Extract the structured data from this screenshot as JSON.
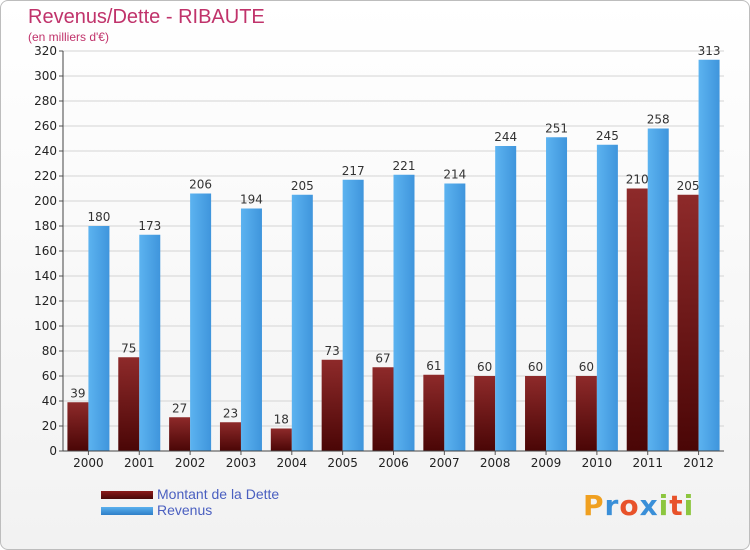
{
  "chart_data": {
    "type": "bar",
    "title": "Revenus/Dette - RIBAUTE",
    "subtitle": "(en milliers d'€)",
    "xlabel": "",
    "ylabel": "",
    "ylim": [
      0,
      320
    ],
    "ytick_step": 20,
    "grid": true,
    "categories": [
      "2000",
      "2001",
      "2002",
      "2003",
      "2004",
      "2005",
      "2006",
      "2007",
      "2008",
      "2009",
      "2010",
      "2011",
      "2012"
    ],
    "series": [
      {
        "name": "Montant de la Dette",
        "color": "#7a1616",
        "values": [
          39,
          75,
          27,
          23,
          18,
          73,
          67,
          61,
          60,
          60,
          60,
          210,
          205
        ]
      },
      {
        "name": "Revenus",
        "color": "#4a9fe0",
        "values": [
          180,
          173,
          206,
          194,
          205,
          217,
          221,
          214,
          244,
          251,
          245,
          258,
          313
        ]
      }
    ],
    "legend_position": "bottom-left"
  },
  "legend": {
    "items": [
      {
        "label": "Montant de la Dette",
        "color": "#6b0f0f"
      },
      {
        "label": "Revenus",
        "color": "#3a8fd8"
      }
    ]
  },
  "logo": {
    "letters": [
      "P",
      "r",
      "o",
      "x",
      "i",
      "t",
      "i"
    ],
    "colors": [
      "#f0a020",
      "#3a8fd8",
      "#e8522a",
      "#3a8fd8",
      "#8cc63f",
      "#e8522a",
      "#8cc63f"
    ]
  }
}
